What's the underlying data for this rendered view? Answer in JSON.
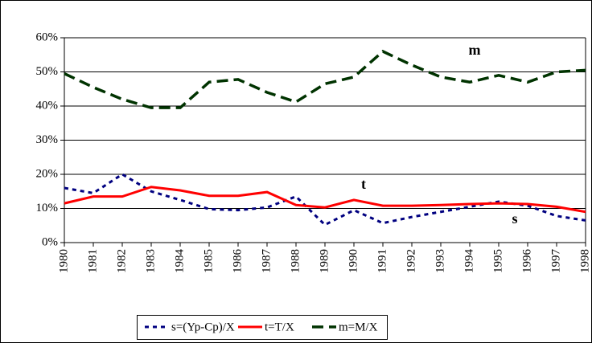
{
  "chart_data": {
    "type": "line",
    "categories": [
      "1980",
      "1981",
      "1982",
      "1983",
      "1984",
      "1985",
      "1986",
      "1987",
      "1988",
      "1989",
      "1990",
      "1991",
      "1992",
      "1993",
      "1994",
      "1995",
      "1996",
      "1997",
      "1998"
    ],
    "series": [
      {
        "name": "s=(Yp-Cp)/X",
        "color": "#000080",
        "dash": "dotted",
        "values": [
          16,
          14.5,
          20,
          15,
          12.5,
          9.8,
          9.5,
          10.3,
          13.5,
          5.2,
          9.5,
          5.7,
          7.5,
          9,
          10.5,
          12,
          10.8,
          7.8,
          6.5
        ]
      },
      {
        "name": "t=T/X",
        "color": "#ff0000",
        "dash": "solid",
        "values": [
          11.5,
          13.5,
          13.5,
          16.3,
          15.3,
          13.7,
          13.7,
          14.8,
          11,
          10.3,
          12.5,
          10.8,
          10.8,
          11,
          11.3,
          11.5,
          11.3,
          10.5,
          9
        ]
      },
      {
        "name": "m=M/X",
        "color": "#003300",
        "dash": "dashed",
        "values": [
          49.5,
          45.5,
          42,
          39.5,
          39.5,
          47,
          47.8,
          44,
          41.2,
          46.5,
          48.5,
          56,
          52,
          48.5,
          47,
          49,
          47,
          50,
          50.5
        ]
      }
    ],
    "annotations": [
      "m",
      "t",
      "s"
    ],
    "ylim": [
      0,
      60
    ],
    "yticks": [
      {
        "value": 0,
        "label": "0%"
      },
      {
        "value": 10,
        "label": "10%"
      },
      {
        "value": 20,
        "label": "20%"
      },
      {
        "value": 30,
        "label": "30%"
      },
      {
        "value": 40,
        "label": "40%"
      },
      {
        "value": 50,
        "label": "50%"
      },
      {
        "value": 60,
        "label": "60%"
      }
    ],
    "grid": true,
    "legend": "bottom"
  }
}
